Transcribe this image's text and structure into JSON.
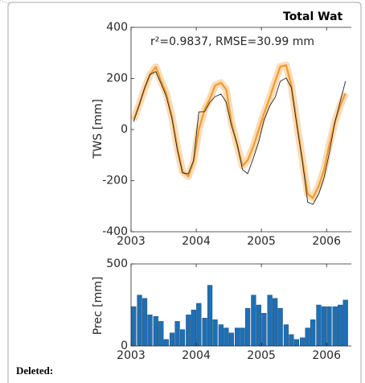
{
  "comment_label": "Deleted:",
  "chart_data": [
    {
      "type": "line",
      "title": "Total Wat",
      "annotation": "r²=0.9837, RMSE=30.99 mm",
      "ylabel": "TWS [mm]",
      "x": [
        2003.04,
        2003.13,
        2003.21,
        2003.29,
        2003.38,
        2003.46,
        2003.54,
        2003.63,
        2003.71,
        2003.79,
        2003.88,
        2003.96,
        2004.04,
        2004.13,
        2004.21,
        2004.29,
        2004.38,
        2004.46,
        2004.54,
        2004.63,
        2004.71,
        2004.79,
        2004.88,
        2004.96,
        2005.04,
        2005.13,
        2005.21,
        2005.29,
        2005.38,
        2005.46,
        2005.54,
        2005.63,
        2005.71,
        2005.79,
        2005.88,
        2005.96,
        2006.04,
        2006.13,
        2006.21,
        2006.29
      ],
      "series": [
        {
          "color": "#f39a2c",
          "values": [
            38,
            100,
            160,
            215,
            245,
            190,
            142,
            47,
            -72,
            -164,
            -183,
            -126,
            0,
            79,
            120,
            173,
            183,
            157,
            31,
            -63,
            -142,
            -120,
            -63,
            0,
            63,
            126,
            189,
            246,
            252,
            173,
            31,
            -120,
            -252,
            -268,
            -221,
            -158,
            -63,
            31,
            94,
            142
          ]
        },
        {
          "color": "#222222",
          "values": [
            30,
            100,
            165,
            215,
            227,
            180,
            130,
            40,
            -80,
            -170,
            -173,
            -120,
            69,
            70,
            107,
            129,
            139,
            107,
            16,
            -57,
            -157,
            -173,
            -110,
            -47,
            38,
            94,
            126,
            189,
            202,
            164,
            25,
            -126,
            -284,
            -293,
            -252,
            -189,
            -95,
            31,
            110,
            189
          ]
        }
      ],
      "xlim": [
        2003,
        2006.38
      ],
      "xticks": [
        2003,
        2004,
        2005,
        2006
      ],
      "ylim": [
        -400,
        400
      ],
      "yticks": [
        -400,
        -200,
        0,
        200,
        400
      ]
    },
    {
      "type": "bar",
      "ylabel": "Prec [mm]",
      "color": "#1f6fb4",
      "x": [
        2003.04,
        2003.13,
        2003.21,
        2003.29,
        2003.38,
        2003.46,
        2003.54,
        2003.63,
        2003.71,
        2003.79,
        2003.88,
        2003.96,
        2004.04,
        2004.13,
        2004.21,
        2004.29,
        2004.38,
        2004.46,
        2004.54,
        2004.63,
        2004.71,
        2004.79,
        2004.88,
        2004.96,
        2005.04,
        2005.13,
        2005.21,
        2005.29,
        2005.38,
        2005.46,
        2005.54,
        2005.63,
        2005.71,
        2005.79,
        2005.88,
        2005.96,
        2006.04,
        2006.13,
        2006.21,
        2006.29
      ],
      "values": [
        240,
        310,
        290,
        190,
        180,
        150,
        40,
        80,
        150,
        100,
        190,
        220,
        260,
        170,
        370,
        160,
        130,
        110,
        80,
        110,
        110,
        230,
        310,
        250,
        200,
        310,
        290,
        230,
        130,
        70,
        40,
        50,
        110,
        160,
        250,
        240,
        240,
        240,
        250,
        280
      ],
      "xlim": [
        2003,
        2006.38
      ],
      "xticks": [
        2003,
        2004,
        2005,
        2006
      ],
      "ylim": [
        0,
        500
      ],
      "yticks": [
        0,
        500
      ]
    }
  ]
}
